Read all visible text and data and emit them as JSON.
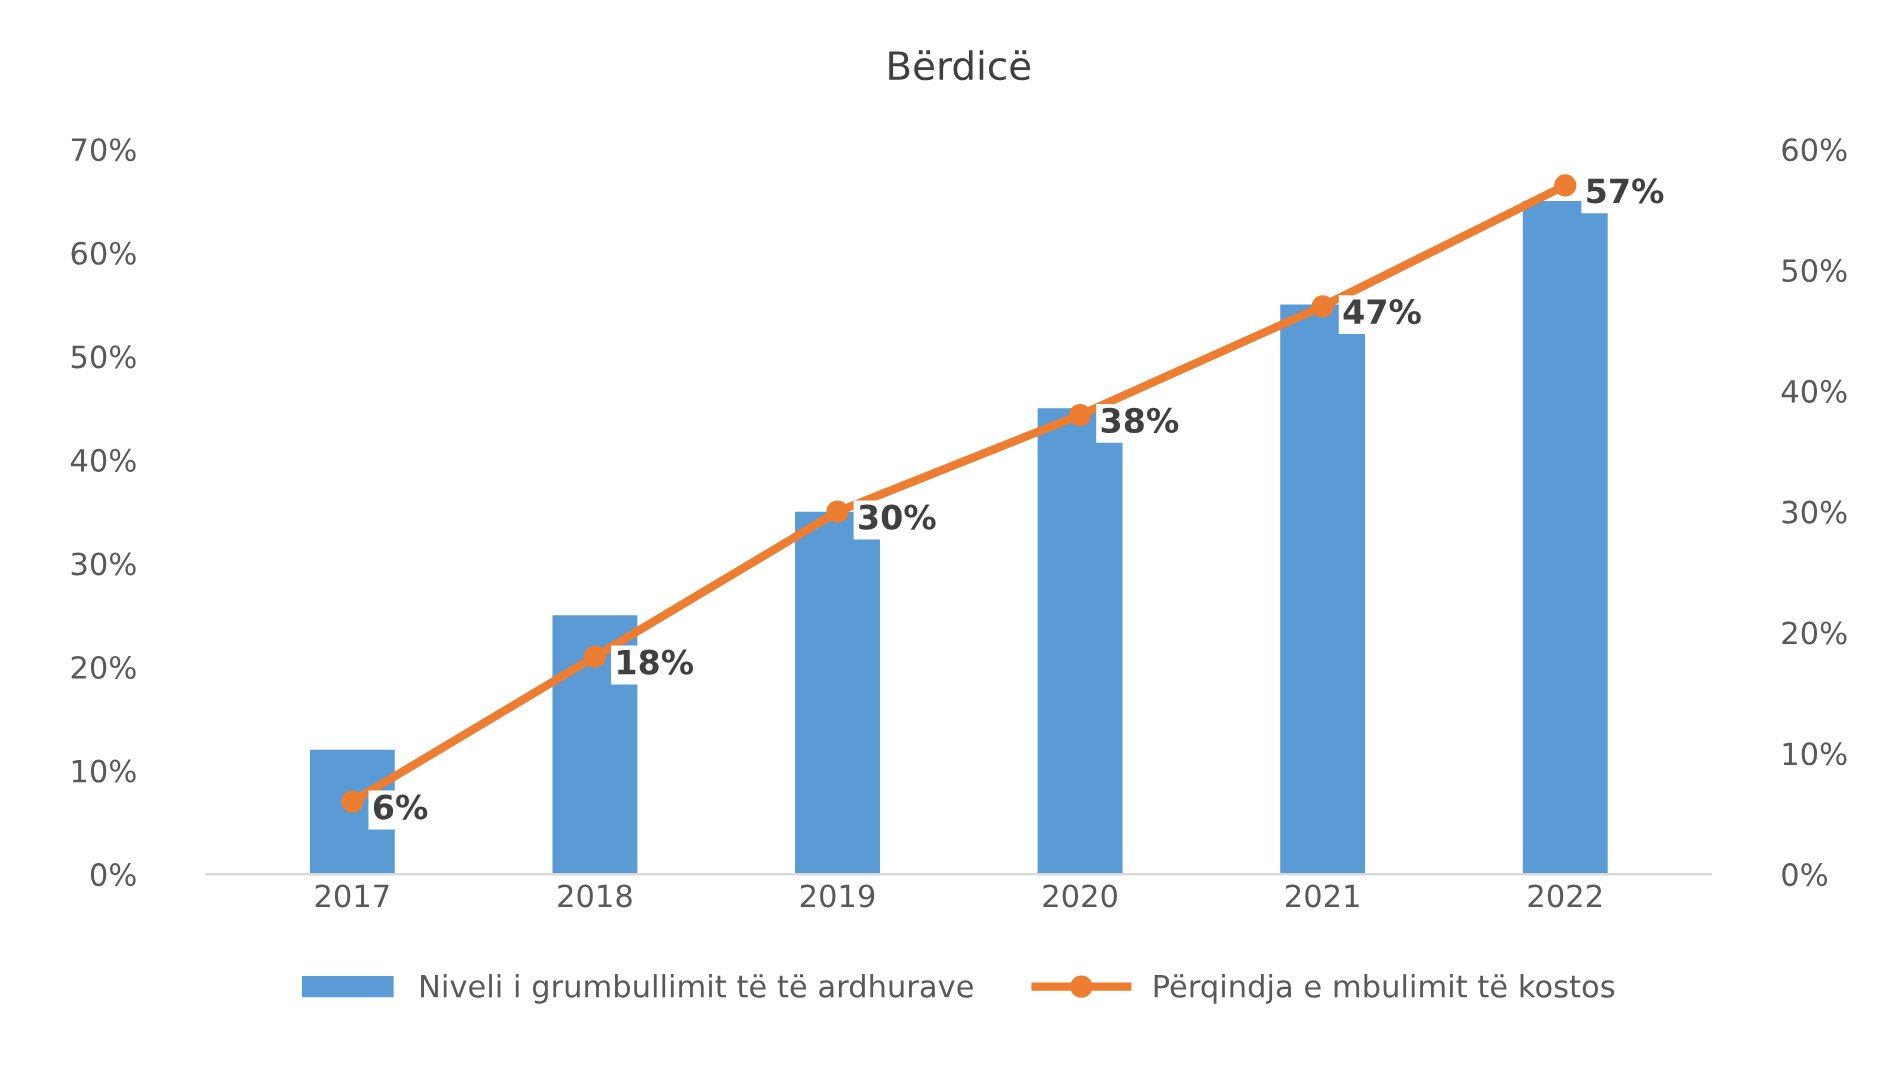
{
  "chart_data": {
    "type": "bar",
    "title": "Bërdicë",
    "categories": [
      "2017",
      "2018",
      "2019",
      "2020",
      "2021",
      "2022"
    ],
    "series": [
      {
        "name": "Niveli i grumbullimit të të ardhurave",
        "color": "#5b9bd5",
        "values": [
          12,
          25,
          35,
          45,
          55,
          65
        ]
      },
      {
        "name": "Përqindja e mbulimit të kostos",
        "type": "line",
        "axis": "y2",
        "color": "#ed7d31",
        "marker": "circle",
        "values": [
          6,
          18,
          30,
          38,
          47,
          57
        ],
        "value_labels": [
          "6%",
          "18%",
          "30%",
          "38%",
          "47%",
          "57%"
        ]
      }
    ],
    "ylim": [
      0,
      70
    ],
    "yticks": [
      {
        "value": 0,
        "label": "0%"
      },
      {
        "value": 10,
        "label": "10%"
      },
      {
        "value": 20,
        "label": "20%"
      },
      {
        "value": 30,
        "label": "30%"
      },
      {
        "value": 40,
        "label": "40%"
      },
      {
        "value": 50,
        "label": "50%"
      },
      {
        "value": 60,
        "label": "60%"
      },
      {
        "value": 70,
        "label": "70%"
      }
    ],
    "y2lim": [
      0,
      60
    ],
    "y2ticks": [
      {
        "value": 0,
        "label": "0%"
      },
      {
        "value": 10,
        "label": "10%"
      },
      {
        "value": 20,
        "label": "20%"
      },
      {
        "value": 30,
        "label": "30%"
      },
      {
        "value": 40,
        "label": "40%"
      },
      {
        "value": 50,
        "label": "50%"
      },
      {
        "value": 60,
        "label": "60%"
      }
    ],
    "grid": false,
    "legend": "bottom"
  }
}
